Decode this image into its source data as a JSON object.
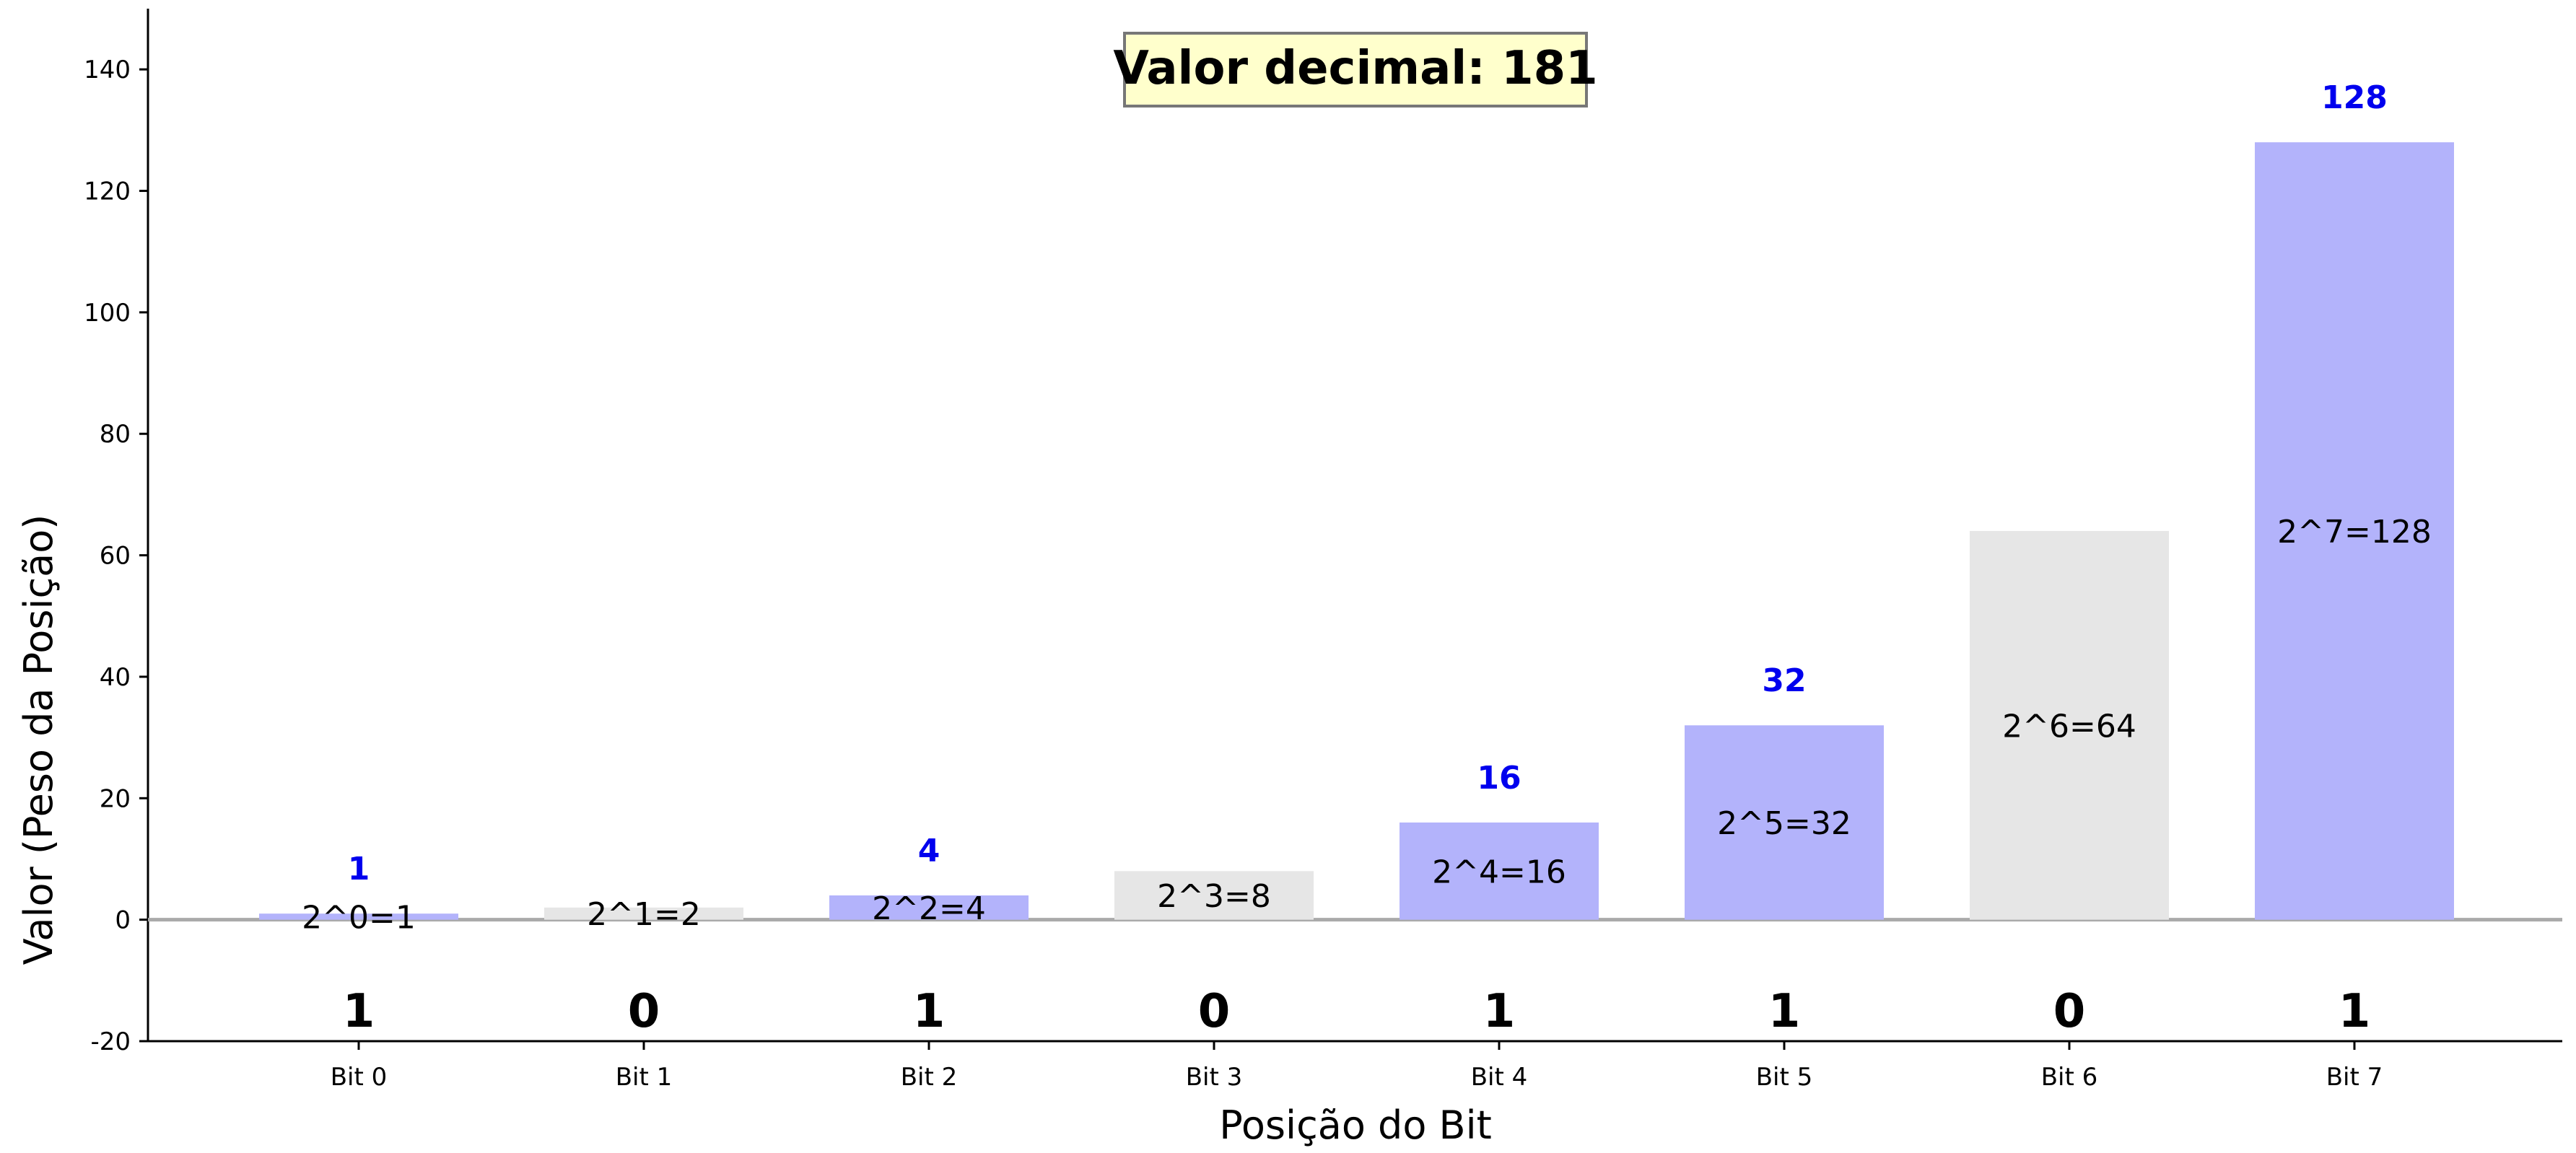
{
  "chart_data": {
    "type": "bar",
    "title_box": "Valor decimal: 181",
    "xlabel": "Posição do Bit",
    "ylabel": "Valor (Peso da Posição)",
    "ylim": [
      -20,
      150
    ],
    "yticks": [
      -20,
      0,
      20,
      40,
      60,
      80,
      100,
      120,
      140
    ],
    "categories": [
      "Bit 0",
      "Bit 1",
      "Bit 2",
      "Bit 3",
      "Bit 4",
      "Bit 5",
      "Bit 6",
      "Bit 7"
    ],
    "values": [
      1,
      2,
      4,
      8,
      16,
      32,
      64,
      128
    ],
    "bits": [
      1,
      0,
      1,
      0,
      1,
      1,
      0,
      1
    ],
    "bit_labels": [
      "1",
      "0",
      "1",
      "0",
      "1",
      "1",
      "0",
      "1"
    ],
    "inner_labels": [
      "2^0=1",
      "2^1=2",
      "2^2=4",
      "2^3=8",
      "2^4=16",
      "2^5=32",
      "2^6=64",
      "2^7=128"
    ],
    "active_value_labels": [
      "1",
      "",
      "4",
      "",
      "16",
      "32",
      "",
      "128"
    ],
    "colors": {
      "active_bar": "#b3b3fb",
      "inactive_bar": "#e6e6e6",
      "value_label": "#0000ee",
      "zero_line": "#aaaaaa",
      "title_box_fill": "#ffffcc",
      "title_box_stroke": "#777777"
    }
  }
}
